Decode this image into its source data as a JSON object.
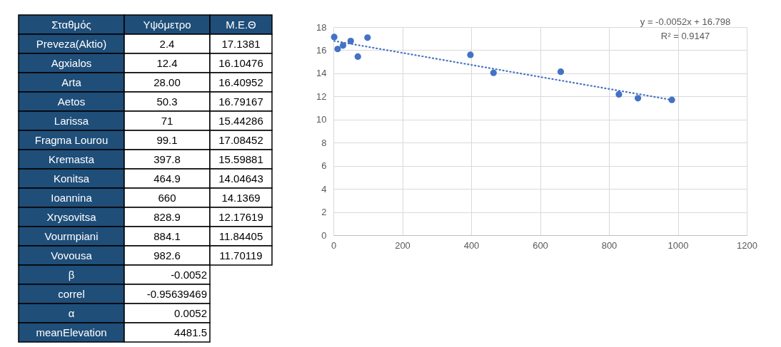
{
  "chart_data": [
    {
      "type": "other",
      "color": "#1f4e79",
      "categories": [
        "Σταθμός",
        "Υψόμετρο",
        "Μ.Ε.Θ"
      ],
      "y_categories": [
        "Preveza(Aktio)",
        "Agxialos",
        "Arta",
        "Aetos",
        "Larissa",
        "Fragma Lourou",
        "Kremasta",
        "Konitsa",
        "Ioannina",
        "Xrysovitsa",
        "Vourmpiani",
        "Vovousa",
        "β",
        "correl",
        "α",
        "meanElevation"
      ],
      "cell_labels": [
        [
          "2.4",
          "17.1381"
        ],
        [
          "12.4",
          "16.10476"
        ],
        [
          "28.00",
          "16.40952"
        ],
        [
          "50.3",
          "16.79167"
        ],
        [
          "71",
          "15.44286"
        ],
        [
          "99.1",
          "17.08452"
        ],
        [
          "397.8",
          "15.59881"
        ],
        [
          "464.9",
          "14.04643"
        ],
        [
          "660",
          "14.1369"
        ],
        [
          "828.9",
          "12.17619"
        ],
        [
          "884.1",
          "11.84405"
        ],
        [
          "982.6",
          "11.70119"
        ],
        [
          "-0.0052",
          null
        ],
        [
          "-0.95639469",
          null
        ],
        [
          "0.0052",
          null
        ],
        [
          "4481.5",
          null
        ]
      ]
    },
    {
      "type": "scatter",
      "xlim": [
        0,
        1200
      ],
      "xticks": [
        0,
        200,
        400,
        600,
        800,
        1000,
        1200
      ],
      "ylim": [
        0,
        18
      ],
      "yticks": [
        0,
        2,
        4,
        6,
        8,
        10,
        12,
        14,
        16,
        18
      ],
      "grid": true,
      "marker": "circle",
      "annotations": [
        "y = -0.0052x + 16.798",
        "R² = 0.9147"
      ],
      "series": [
        {
          "type": "scatter",
          "color": "#4472c4",
          "x": [
            2.4,
            12.4,
            28.0,
            50.3,
            71,
            99.1,
            397.8,
            464.9,
            660,
            828.9,
            884.1,
            982.6
          ],
          "values": [
            17.1381,
            16.10476,
            16.40952,
            16.79167,
            15.44286,
            17.08452,
            15.59881,
            14.04643,
            14.1369,
            12.17619,
            11.84405,
            11.70119
          ]
        },
        {
          "type": "line",
          "color": "#4472c4",
          "line_style": "dotted",
          "marker": "none",
          "x": [
            2.4,
            982.6
          ],
          "values": [
            16.8,
            11.7
          ]
        }
      ]
    }
  ]
}
